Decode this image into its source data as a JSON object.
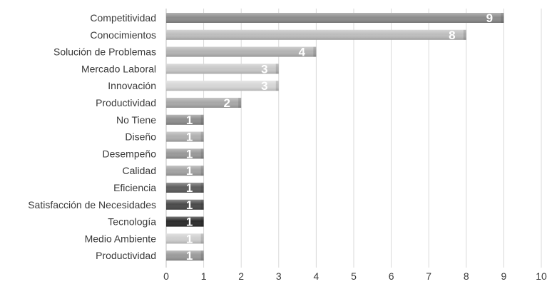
{
  "chart_data": {
    "type": "bar",
    "orientation": "horizontal",
    "categories": [
      "Competitividad",
      "Conocimientos",
      "Solución de Problemas",
      "Mercado Laboral",
      "Innovación",
      "Productividad",
      "No Tiene",
      "Diseño",
      "Desempeño",
      "Calidad",
      "Eficiencia",
      "Satisfacción de Necesidades",
      "Tecnología",
      "Medio Ambiente",
      "Productividad"
    ],
    "values": [
      9,
      8,
      4,
      3,
      3,
      2,
      1,
      1,
      1,
      1,
      1,
      1,
      1,
      1,
      1
    ],
    "data_labels": [
      "9",
      "8",
      "4",
      "3",
      "3",
      "2",
      "1",
      "1",
      "1",
      "1",
      "1",
      "1",
      "1",
      "1",
      "1"
    ],
    "bar_colors": [
      "#8c8c8c",
      "#bdbdbd",
      "#b3b3b3",
      "#c8c8c8",
      "#d6d6d6",
      "#a8a8a8",
      "#8f8f8f",
      "#b0b0b0",
      "#999999",
      "#a3a3a3",
      "#5e5e5e",
      "#4a4a4a",
      "#2b2b2b",
      "#cfcfcf",
      "#9a9a9a"
    ],
    "xlim": [
      0,
      10
    ],
    "xticks": [
      "0",
      "1",
      "2",
      "3",
      "4",
      "5",
      "6",
      "7",
      "8",
      "9",
      "10"
    ],
    "grid": true,
    "title": "",
    "xlabel": "",
    "ylabel": ""
  }
}
